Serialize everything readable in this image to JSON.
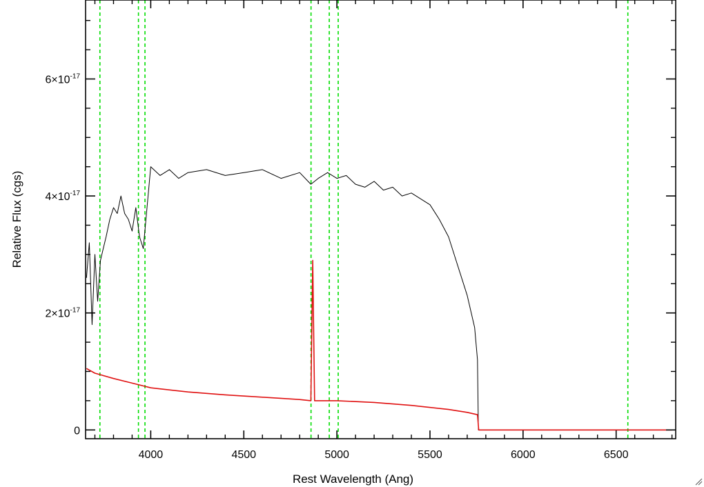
{
  "chart_data": {
    "type": "line",
    "title": "",
    "xlabel": "Rest Wavelength (Ang)",
    "ylabel": "Relative Flux (cgs)",
    "xlim": [
      3650,
      6820
    ],
    "ylim": [
      -1.5e-18,
      7.35e-17
    ],
    "x_ticks": [
      4000,
      4500,
      5000,
      5500,
      6000,
      6500
    ],
    "x_tick_labels": [
      "4000",
      "4500",
      "5000",
      "5500",
      "6000",
      "6500"
    ],
    "y_ticks": [
      {
        "value": 0,
        "mantissa": "0",
        "exponent": ""
      },
      {
        "value": 2e-17,
        "mantissa": "2×10",
        "exponent": "-17"
      },
      {
        "value": 4e-17,
        "mantissa": "4×10",
        "exponent": "-17"
      },
      {
        "value": 6e-17,
        "mantissa": "6×10",
        "exponent": "-17"
      }
    ],
    "grid": false,
    "colors": {
      "spectrum": "#000000",
      "error": "#e01010",
      "lines": "#00dd00"
    },
    "series": [
      {
        "color": "#000000",
        "x": [
          3655,
          3670,
          3685,
          3700,
          3715,
          3730,
          3745,
          3760,
          3780,
          3800,
          3820,
          3840,
          3860,
          3880,
          3900,
          3920,
          3940,
          3960,
          3980,
          4000,
          4050,
          4100,
          4150,
          4200,
          4300,
          4400,
          4500,
          4600,
          4700,
          4800,
          4860,
          4900,
          4950,
          5000,
          5050,
          5100,
          5150,
          5200,
          5250,
          5300,
          5350,
          5400,
          5450,
          5500,
          5550,
          5600,
          5650,
          5700,
          5740,
          5755,
          5760,
          5800,
          6000,
          6200,
          6400,
          6600,
          6800
        ],
        "y": [
          2.6e-17,
          3.2e-17,
          1.8e-17,
          3e-17,
          2.2e-17,
          2.9e-17,
          3.1e-17,
          3.3e-17,
          3.6e-17,
          3.8e-17,
          3.7e-17,
          4e-17,
          3.7e-17,
          3.6e-17,
          3.4e-17,
          3.8e-17,
          3.3e-17,
          3.1e-17,
          3.8e-17,
          4.5e-17,
          4.35e-17,
          4.45e-17,
          4.3e-17,
          4.4e-17,
          4.45e-17,
          4.35e-17,
          4.4e-17,
          4.45e-17,
          4.3e-17,
          4.4e-17,
          4.2e-17,
          4.3e-17,
          4.4e-17,
          4.3e-17,
          4.35e-17,
          4.2e-17,
          4.15e-17,
          4.25e-17,
          4.1e-17,
          4.15e-17,
          4e-17,
          4.05e-17,
          3.95e-17,
          3.85e-17,
          3.6e-17,
          3.3e-17,
          2.8e-17,
          2.3e-17,
          1.75e-17,
          1.2e-17,
          0,
          0,
          0,
          0,
          0,
          0,
          0
        ]
      },
      {
        "color": "#e01010",
        "x": [
          3655,
          3700,
          3800,
          3900,
          4000,
          4200,
          4400,
          4600,
          4800,
          4860,
          4870,
          4880,
          4950,
          5000,
          5200,
          5400,
          5600,
          5700,
          5755,
          5762,
          5800,
          6000,
          6200,
          6400,
          6600,
          6800
        ],
        "y": [
          1.05e-17,
          9.7e-18,
          8.8e-18,
          8e-18,
          7.2e-18,
          6.5e-18,
          6e-18,
          5.6e-18,
          5.2e-18,
          5e-18,
          2.9e-17,
          5e-18,
          5e-18,
          5e-18,
          4.7e-18,
          4.2e-18,
          3.5e-18,
          3e-18,
          2.6e-18,
          0,
          0,
          0,
          0,
          0,
          0,
          0
        ]
      }
    ],
    "vertical_lines": [
      3727,
      3934,
      3969,
      4861,
      4959,
      5007,
      6563
    ]
  }
}
